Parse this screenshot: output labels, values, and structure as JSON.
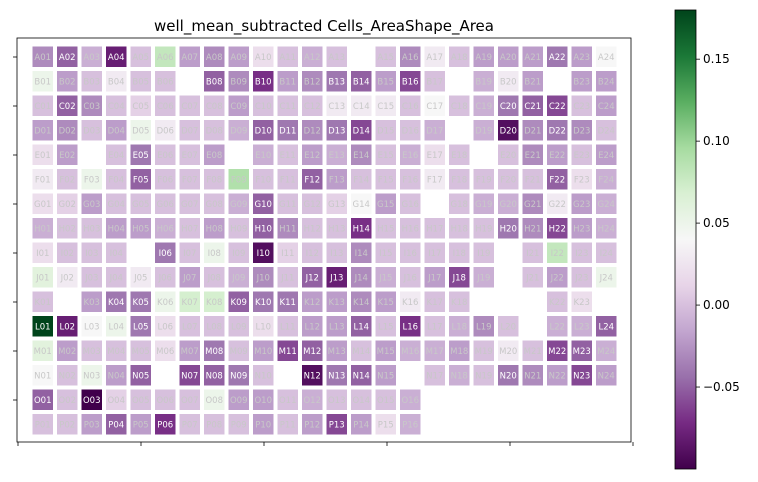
{
  "chart_data": {
    "type": "heatmap",
    "title": "well_mean_subtracted Cells_AreaShape_Area",
    "rows": [
      "A",
      "B",
      "C",
      "D",
      "E",
      "F",
      "G",
      "H",
      "I",
      "J",
      "K",
      "L",
      "M",
      "N",
      "O",
      "P"
    ],
    "cols": [
      "01",
      "02",
      "03",
      "04",
      "05",
      "06",
      "07",
      "08",
      "09",
      "10",
      "11",
      "12",
      "13",
      "14",
      "15",
      "16",
      "17",
      "18",
      "19",
      "20",
      "21",
      "22",
      "23",
      "24"
    ],
    "colorbar": {
      "min": -0.1,
      "max": 0.18,
      "colormap": "PRGn",
      "ticks": [
        -0.05,
        0.0,
        0.05,
        0.1,
        0.15
      ],
      "tick_labels": [
        "−0.05",
        "0.00",
        "0.05",
        "0.10",
        "0.15"
      ]
    },
    "values": [
      [
        -0.03,
        -0.05,
        -0.01,
        -0.08,
        0.0,
        0.08,
        -0.02,
        -0.03,
        -0.02,
        0.02,
        0.0,
        -0.01,
        0.0,
        null,
        0.0,
        -0.03,
        0.03,
        0.0,
        -0.02,
        -0.02,
        -0.02,
        -0.04,
        -0.02,
        0.04
      ],
      [
        0.05,
        -0.02,
        0.0,
        0.03,
        0.0,
        0.0,
        null,
        -0.05,
        -0.03,
        -0.07,
        -0.02,
        -0.03,
        -0.04,
        -0.05,
        -0.02,
        -0.06,
        0.0,
        null,
        -0.01,
        0.03,
        -0.02,
        null,
        -0.02,
        -0.02
      ],
      [
        0.0,
        -0.05,
        -0.03,
        0.0,
        0.01,
        0.0,
        0.0,
        0.0,
        -0.02,
        0.0,
        0.0,
        0.0,
        0.03,
        0.03,
        0.03,
        0.0,
        0.04,
        0.0,
        -0.01,
        -0.04,
        -0.05,
        -0.06,
        0.0,
        -0.02
      ],
      [
        -0.02,
        -0.03,
        0.0,
        -0.02,
        0.05,
        0.03,
        0.0,
        0.0,
        -0.01,
        -0.05,
        -0.04,
        -0.03,
        -0.04,
        -0.06,
        0.0,
        0.0,
        -0.01,
        null,
        -0.01,
        -0.09,
        -0.03,
        -0.04,
        -0.03,
        0.0
      ],
      [
        0.02,
        -0.02,
        null,
        0.0,
        -0.04,
        0.0,
        0.0,
        -0.02,
        null,
        -0.01,
        0.0,
        -0.02,
        -0.01,
        -0.03,
        0.0,
        -0.01,
        0.02,
        0.0,
        null,
        0.0,
        -0.03,
        -0.02,
        0.0,
        -0.02
      ],
      [
        0.03,
        0.0,
        0.05,
        0.0,
        -0.05,
        0.0,
        0.0,
        0.0,
        0.09,
        0.0,
        0.0,
        -0.05,
        -0.02,
        0.0,
        0.0,
        0.0,
        0.03,
        0.0,
        0.0,
        0.0,
        0.0,
        -0.05,
        0.02,
        -0.01
      ],
      [
        0.02,
        0.01,
        -0.02,
        0.0,
        0.0,
        0.0,
        0.0,
        0.0,
        -0.01,
        -0.05,
        0.0,
        0.0,
        0.01,
        0.04,
        -0.02,
        0.0,
        null,
        0.0,
        -0.01,
        -0.01,
        -0.03,
        0.03,
        -0.02,
        -0.01
      ],
      [
        -0.01,
        0.0,
        0.0,
        -0.02,
        -0.02,
        -0.01,
        0.0,
        -0.02,
        0.0,
        -0.05,
        -0.03,
        0.0,
        0.0,
        -0.07,
        0.0,
        0.0,
        0.0,
        0.0,
        0.0,
        -0.04,
        -0.03,
        -0.06,
        -0.02,
        -0.01
      ],
      [
        0.02,
        0.0,
        0.0,
        0.0,
        null,
        -0.04,
        0.0,
        0.05,
        0.0,
        -0.09,
        0.01,
        0.0,
        0.0,
        -0.03,
        0.0,
        0.0,
        0.0,
        0.0,
        0.0,
        null,
        0.0,
        0.08,
        0.0,
        0.0
      ],
      [
        0.06,
        0.03,
        0.0,
        0.0,
        0.03,
        0.0,
        -0.02,
        0.0,
        -0.01,
        -0.03,
        0.0,
        -0.05,
        -0.08,
        -0.03,
        -0.01,
        0.0,
        -0.02,
        -0.06,
        -0.01,
        null,
        0.0,
        -0.02,
        0.0,
        0.05
      ],
      [
        0.0,
        null,
        -0.02,
        -0.04,
        -0.04,
        0.05,
        0.07,
        0.07,
        -0.05,
        -0.04,
        -0.04,
        -0.02,
        -0.02,
        -0.03,
        -0.02,
        0.03,
        0.0,
        0.0,
        null,
        null,
        null,
        0.0,
        0.02,
        null
      ],
      [
        0.18,
        -0.08,
        0.04,
        0.05,
        -0.04,
        0.02,
        0.0,
        0.0,
        0.0,
        0.02,
        0.0,
        -0.02,
        -0.02,
        -0.05,
        0.0,
        -0.07,
        0.0,
        -0.01,
        -0.03,
        0.0,
        null,
        -0.01,
        -0.01,
        -0.05
      ],
      [
        0.06,
        -0.02,
        0.0,
        0.0,
        0.0,
        0.02,
        -0.02,
        -0.04,
        0.0,
        -0.02,
        -0.06,
        -0.05,
        -0.02,
        0.0,
        -0.02,
        -0.01,
        -0.01,
        -0.02,
        0.0,
        0.03,
        0.0,
        -0.06,
        -0.05,
        -0.01
      ],
      [
        0.04,
        0.0,
        0.05,
        -0.02,
        -0.05,
        null,
        -0.06,
        -0.05,
        -0.04,
        0.0,
        null,
        -0.09,
        -0.04,
        -0.05,
        -0.02,
        null,
        0.0,
        -0.01,
        0.0,
        -0.04,
        -0.03,
        -0.02,
        -0.06,
        -0.02
      ],
      [
        -0.05,
        0.0,
        -0.1,
        0.01,
        0.0,
        0.0,
        0.0,
        0.05,
        -0.02,
        -0.02,
        0.0,
        -0.01,
        0.0,
        0.0,
        0.0,
        -0.01,
        null,
        null,
        null,
        null,
        null,
        null,
        null,
        null
      ],
      [
        0.0,
        0.0,
        -0.02,
        -0.05,
        -0.02,
        -0.07,
        0.0,
        0.0,
        0.0,
        -0.02,
        0.0,
        -0.02,
        -0.06,
        -0.02,
        0.02,
        -0.01,
        null,
        null,
        null,
        null,
        null,
        null,
        null,
        null
      ]
    ]
  }
}
